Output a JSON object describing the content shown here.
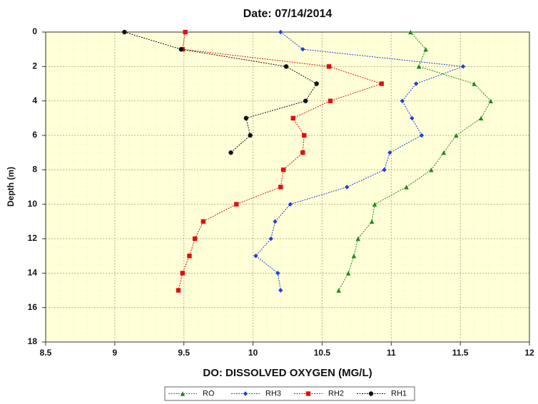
{
  "chart_data": {
    "type": "line",
    "title": "Date: 07/14/2014",
    "x_label": "DO: DISSOLVED OXYGEN (MG/L)",
    "y_label": "Depth (m)",
    "xlim": [
      8.5,
      12
    ],
    "xticks": [
      8.5,
      9,
      9.5,
      10,
      10.5,
      11,
      11.5,
      12
    ],
    "ylim": [
      0,
      18
    ],
    "yticks": [
      0,
      2,
      4,
      6,
      8,
      10,
      12,
      14,
      16,
      18
    ],
    "y_inverted": true,
    "grid": true,
    "legend": "bottom",
    "series": [
      {
        "name": "RO",
        "color": "#1a8a1a",
        "marker": "triangle",
        "x": [
          11.14,
          11.25,
          11.2,
          11.6,
          11.72,
          11.65,
          11.47,
          11.38,
          11.29,
          11.11,
          10.88,
          10.86,
          10.76,
          10.73,
          10.69,
          10.62
        ],
        "y": [
          0,
          1,
          2,
          3,
          4,
          5,
          6,
          7,
          8,
          9,
          10,
          11,
          12,
          13,
          14,
          15
        ]
      },
      {
        "name": "RH3",
        "color": "#1f3fe0",
        "marker": "diamond",
        "x": [
          10.2,
          10.36,
          11.52,
          11.18,
          11.08,
          11.15,
          11.22,
          10.99,
          10.95,
          10.68,
          10.27,
          10.16,
          10.13,
          10.02,
          10.18,
          10.2
        ],
        "y": [
          0,
          1,
          2,
          3,
          4,
          5,
          6,
          7,
          8,
          9,
          10,
          11,
          12,
          13,
          14,
          15
        ]
      },
      {
        "name": "RH2",
        "color": "#e01010",
        "marker": "square",
        "x": [
          9.51,
          9.49,
          10.55,
          10.93,
          10.56,
          10.29,
          10.37,
          10.36,
          10.22,
          10.2,
          9.88,
          9.64,
          9.58,
          9.54,
          9.49,
          9.46
        ],
        "y": [
          0,
          1,
          2,
          3,
          4,
          5,
          6,
          7,
          8,
          9,
          10,
          11,
          12,
          13,
          14,
          15
        ]
      },
      {
        "name": "RH1",
        "color": "#111111",
        "marker": "circle",
        "x": [
          9.07,
          9.48,
          10.24,
          10.46,
          10.38,
          9.95,
          9.98,
          9.84
        ],
        "y": [
          0,
          1,
          2,
          3,
          4,
          5,
          6,
          7
        ]
      }
    ]
  }
}
